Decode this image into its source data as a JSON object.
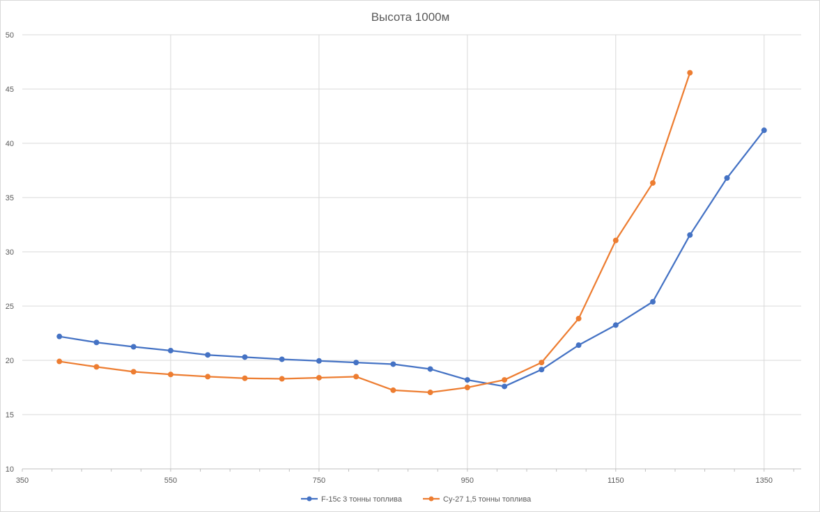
{
  "chart_data": {
    "type": "scatter",
    "title": "Высота 1000м",
    "xlabel": "",
    "ylabel": "",
    "xlim": [
      350,
      1400
    ],
    "ylim": [
      10,
      50
    ],
    "xticks": [
      350,
      550,
      750,
      950,
      1150,
      1350
    ],
    "yticks": [
      10,
      15,
      20,
      25,
      30,
      35,
      40,
      45,
      50
    ],
    "grid": true,
    "legend_position": "bottom",
    "series": [
      {
        "name": "F-15c 3 тонны топлива",
        "color": "#4472C4",
        "points": [
          [
            400,
            22.2
          ],
          [
            450,
            21.65
          ],
          [
            500,
            21.25
          ],
          [
            550,
            20.9
          ],
          [
            600,
            20.5
          ],
          [
            650,
            20.3
          ],
          [
            700,
            20.1
          ],
          [
            750,
            19.95
          ],
          [
            800,
            19.8
          ],
          [
            850,
            19.65
          ],
          [
            900,
            19.2
          ],
          [
            950,
            18.2
          ],
          [
            1000,
            17.6
          ],
          [
            1050,
            19.15
          ],
          [
            1100,
            21.4
          ],
          [
            1150,
            23.25
          ],
          [
            1200,
            25.4
          ],
          [
            1250,
            31.55
          ],
          [
            1300,
            36.8
          ],
          [
            1350,
            41.2
          ]
        ]
      },
      {
        "name": "Су-27 1,5 тонны топлива",
        "color": "#ED7D31",
        "points": [
          [
            400,
            19.9
          ],
          [
            450,
            19.4
          ],
          [
            500,
            18.95
          ],
          [
            550,
            18.7
          ],
          [
            600,
            18.5
          ],
          [
            650,
            18.35
          ],
          [
            700,
            18.3
          ],
          [
            750,
            18.4
          ],
          [
            800,
            18.5
          ],
          [
            850,
            17.25
          ],
          [
            900,
            17.05
          ],
          [
            950,
            17.5
          ],
          [
            1000,
            18.2
          ],
          [
            1050,
            19.8
          ],
          [
            1100,
            23.85
          ],
          [
            1150,
            31.05
          ],
          [
            1200,
            36.35
          ],
          [
            1250,
            46.5
          ]
        ]
      }
    ]
  }
}
